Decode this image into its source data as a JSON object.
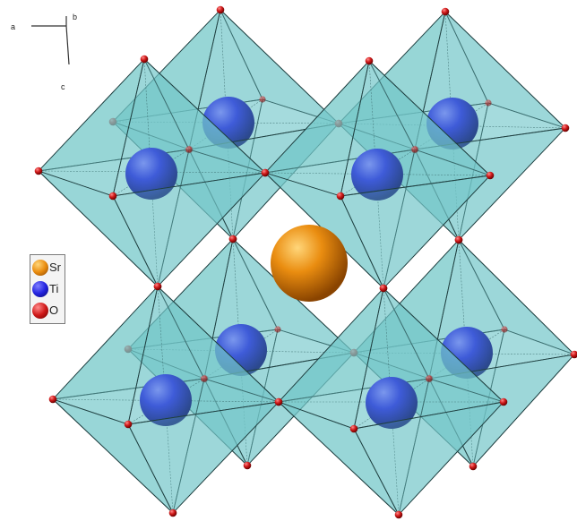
{
  "axes": {
    "a": "a",
    "b": "b",
    "c": "c"
  },
  "legend": {
    "items": [
      {
        "label": "Sr",
        "color": "#e48a10",
        "icon": "sr-atom-swatch"
      },
      {
        "label": "Ti",
        "color": "#1f1fd9",
        "icon": "ti-atom-swatch"
      },
      {
        "label": "O",
        "color": "#cc1a1a",
        "icon": "o-atom-swatch"
      }
    ]
  },
  "colors": {
    "octahedron_face": "#73c7c9",
    "octahedron_edge": "#1f3f40",
    "ti": "#1f1fd9",
    "o": "#cc1a1a",
    "sr": "#e48a10"
  }
}
